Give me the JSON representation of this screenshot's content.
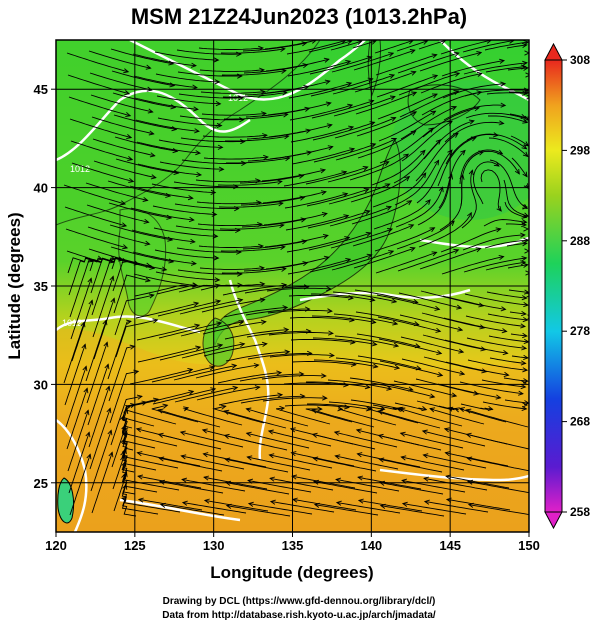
{
  "title": "MSM 21Z24Jun2023 (1013.2hPa)",
  "xlabel": "Longitude (degrees)",
  "ylabel": "Latitude  (degrees)",
  "x_ticks": [
    "120",
    "125",
    "130",
    "135",
    "140",
    "145",
    "150"
  ],
  "y_ticks": [
    "25",
    "30",
    "35",
    "40",
    "45"
  ],
  "colorbar_ticks": [
    "308",
    "298",
    "288",
    "278",
    "268",
    "258"
  ],
  "credit_lines": [
    "Drawing by DCL (https://www.gfd-dennou.org/library/dcl/)",
    "Data from http://database.rish.kyoto-u.ac.jp/arch/jmadata/"
  ],
  "map": {
    "lon_range": [
      120,
      150
    ],
    "lat_range": [
      22.5,
      47.5
    ],
    "grid_interval_deg": 5,
    "field": "temperature (K)",
    "colorbar_range": [
      258,
      308
    ],
    "vectors": "streamlines",
    "contour_color": "#ffffff",
    "isobar_labels": [
      "1012",
      "1012",
      "1012"
    ]
  },
  "colors": {
    "warm": "#e08a1f",
    "mid": "#c8d018",
    "cool": "#38c830"
  }
}
